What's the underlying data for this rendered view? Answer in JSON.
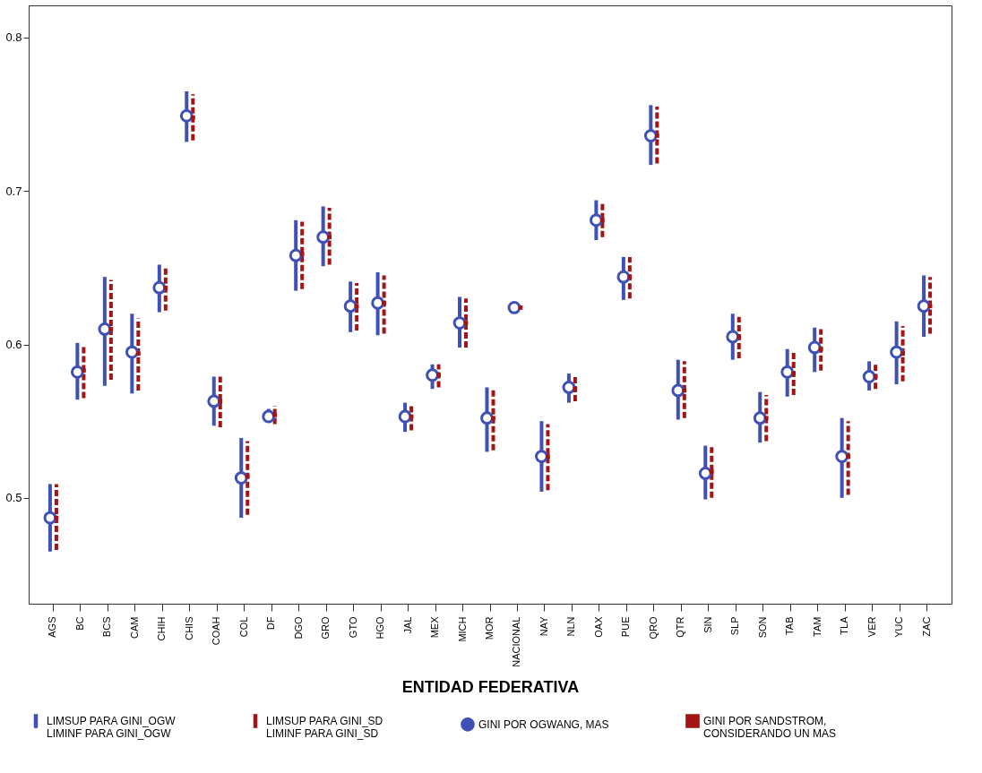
{
  "chart_data": {
    "type": "scatter",
    "xlabel": "ENTIDAD FEDERATIVA",
    "categories": [
      "AGS",
      "BC",
      "BCS",
      "CAM",
      "CHIH",
      "CHIS",
      "COAH",
      "COL",
      "DF",
      "DGO",
      "GRO",
      "GTO",
      "HGO",
      "JAL",
      "MEX",
      "MICH",
      "MOR",
      "NACIONAL",
      "NAY",
      "NLN",
      "OAX",
      "PUE",
      "QRO",
      "QTR",
      "SIN",
      "SLP",
      "SON",
      "TAB",
      "TAM",
      "TLA",
      "VER",
      "YUC",
      "ZAC"
    ],
    "ylim": [
      0.431,
      0.821
    ],
    "yticks": [
      0.5,
      0.6,
      0.7,
      0.8
    ],
    "grid": false,
    "legend": "bottom",
    "annotations": [
      "LIMSUP PARA GINI_OGW\nLIMINF PARA GINI_OGW",
      "LIMSUP PARA GINI_SD\nLIMINF PARA GINI_SD"
    ],
    "series": [
      {
        "name": "GINI POR OGWANG, MAS",
        "color": "#3f51b5",
        "marker": "circle",
        "line_style": "solid",
        "values": [
          0.487,
          0.582,
          0.61,
          0.595,
          0.637,
          0.749,
          0.563,
          0.513,
          0.553,
          0.658,
          0.67,
          0.625,
          0.627,
          0.553,
          0.58,
          0.614,
          0.552,
          0.624,
          0.527,
          0.572,
          0.681,
          0.644,
          0.736,
          0.57,
          0.516,
          0.605,
          0.552,
          0.582,
          0.598,
          0.527,
          0.579,
          0.595,
          0.625
        ],
        "errors": [
          [
            0.465,
            0.509
          ],
          [
            0.564,
            0.601
          ],
          [
            0.573,
            0.644
          ],
          [
            0.568,
            0.62
          ],
          [
            0.621,
            0.652
          ],
          [
            0.732,
            0.765
          ],
          [
            0.547,
            0.579
          ],
          [
            0.487,
            0.539
          ],
          [
            0.549,
            0.558
          ],
          [
            0.635,
            0.681
          ],
          [
            0.651,
            0.69
          ],
          [
            0.608,
            0.641
          ],
          [
            0.606,
            0.647
          ],
          [
            0.543,
            0.562
          ],
          [
            0.571,
            0.587
          ],
          [
            0.598,
            0.631
          ],
          [
            0.53,
            0.572
          ],
          [
            0.622,
            0.626
          ],
          [
            0.504,
            0.55
          ],
          [
            0.562,
            0.581
          ],
          [
            0.668,
            0.694
          ],
          [
            0.629,
            0.657
          ],
          [
            0.717,
            0.756
          ],
          [
            0.551,
            0.59
          ],
          [
            0.499,
            0.534
          ],
          [
            0.59,
            0.62
          ],
          [
            0.536,
            0.569
          ],
          [
            0.566,
            0.597
          ],
          [
            0.582,
            0.611
          ],
          [
            0.5,
            0.552
          ],
          [
            0.57,
            0.589
          ],
          [
            0.574,
            0.615
          ],
          [
            0.605,
            0.645
          ]
        ]
      },
      {
        "name": "GINI POR SANDSTROM,\nCONSIDERANDO UN MAS",
        "color": "#a31515",
        "marker": "square",
        "line_style": "dashed",
        "values": [
          0.487,
          0.583,
          0.61,
          0.594,
          0.637,
          0.748,
          0.563,
          0.514,
          0.554,
          0.659,
          0.67,
          0.625,
          0.627,
          0.553,
          0.58,
          0.614,
          0.552,
          0.624,
          0.527,
          0.571,
          0.681,
          0.644,
          0.736,
          0.57,
          0.517,
          0.605,
          0.552,
          0.581,
          0.597,
          0.527,
          0.579,
          0.594,
          0.625
        ],
        "errors": [
          [
            0.466,
            0.509
          ],
          [
            0.565,
            0.6
          ],
          [
            0.577,
            0.642
          ],
          [
            0.57,
            0.617
          ],
          [
            0.622,
            0.651
          ],
          [
            0.733,
            0.763
          ],
          [
            0.546,
            0.579
          ],
          [
            0.489,
            0.537
          ],
          [
            0.548,
            0.56
          ],
          [
            0.636,
            0.68
          ],
          [
            0.652,
            0.689
          ],
          [
            0.609,
            0.64
          ],
          [
            0.607,
            0.645
          ],
          [
            0.544,
            0.561
          ],
          [
            0.572,
            0.587
          ],
          [
            0.598,
            0.63
          ],
          [
            0.531,
            0.571
          ],
          [
            0.623,
            0.625
          ],
          [
            0.505,
            0.548
          ],
          [
            0.563,
            0.58
          ],
          [
            0.67,
            0.692
          ],
          [
            0.63,
            0.657
          ],
          [
            0.718,
            0.755
          ],
          [
            0.552,
            0.589
          ],
          [
            0.5,
            0.533
          ],
          [
            0.591,
            0.618
          ],
          [
            0.537,
            0.567
          ],
          [
            0.567,
            0.596
          ],
          [
            0.583,
            0.61
          ],
          [
            0.502,
            0.55
          ],
          [
            0.571,
            0.587
          ],
          [
            0.576,
            0.612
          ],
          [
            0.607,
            0.644
          ]
        ]
      }
    ]
  }
}
